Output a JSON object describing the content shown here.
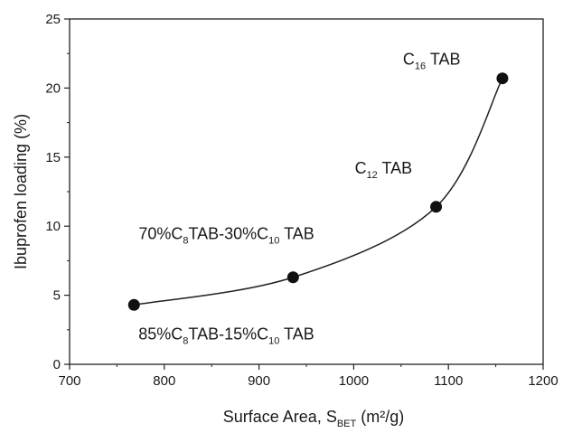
{
  "chart_data": {
    "type": "scatter",
    "xlabel": {
      "main": "Surface Area, S",
      "sub": "BET",
      "unit": " (m²/g)"
    },
    "ylabel": "Ibuprofen loading (%)",
    "xlim": [
      700,
      1200
    ],
    "ylim": [
      0,
      25
    ],
    "xticks": [
      "700",
      "800",
      "900",
      "1000",
      "1100",
      "1200"
    ],
    "yticks": [
      "0",
      "5",
      "10",
      "15",
      "20",
      "25"
    ],
    "grid": false,
    "legend": "none",
    "series": [
      {
        "points": [
          {
            "x": 768,
            "y": 4.3
          },
          {
            "x": 936,
            "y": 6.3
          },
          {
            "x": 1087,
            "y": 11.4
          },
          {
            "x": 1157,
            "y": 20.7
          }
        ],
        "trend_line": "smooth curve through points"
      }
    ],
    "annotations": [
      {
        "point_index": 0,
        "parts": [
          [
            "85%C",
            ""
          ],
          [
            "8",
            "sub"
          ],
          [
            "TAB-15%C",
            ""
          ],
          [
            "10",
            "sub"
          ],
          [
            " TAB",
            ""
          ]
        ]
      },
      {
        "point_index": 1,
        "parts": [
          [
            "70%C",
            ""
          ],
          [
            "8",
            "sub"
          ],
          [
            "TAB-30%C",
            ""
          ],
          [
            "10",
            "sub"
          ],
          [
            " TAB",
            ""
          ]
        ]
      },
      {
        "point_index": 2,
        "parts": [
          [
            "C",
            ""
          ],
          [
            "12",
            "sub"
          ],
          [
            " TAB",
            ""
          ]
        ]
      },
      {
        "point_index": 3,
        "parts": [
          [
            "C",
            ""
          ],
          [
            "16",
            "sub"
          ],
          [
            " TAB",
            ""
          ]
        ]
      }
    ],
    "colors": {
      "marker": "#111111",
      "line": "#222222",
      "axis": "#222222"
    }
  }
}
